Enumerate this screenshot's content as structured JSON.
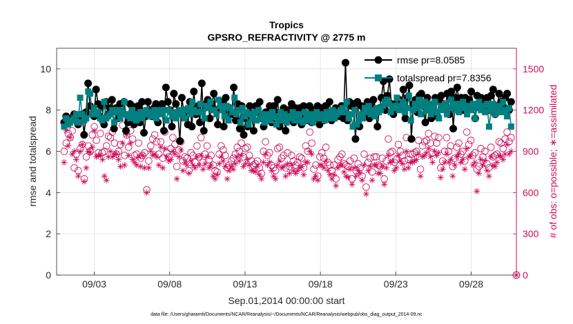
{
  "chart_data": {
    "type": "line",
    "title": "Tropics",
    "subtitle": "GPSRO_REFRACTIVITY @ 2775 m",
    "xlabel": "Sep.01,2014 00:00:00 start",
    "ylabel": "rmse and totalspread",
    "ylabel_right": "# of obs: o=possible; ∗=assimilated",
    "footnote": "data file: /Users/gharamti/Documents/NCAR/Reanalysis/~/Documents/NCAR/Reanalysis/webpub/obs_diag_output_2014-09.nc",
    "xlim": [
      0.5,
      31
    ],
    "x_ticks": [
      3,
      8,
      13,
      18,
      23,
      28
    ],
    "x_tick_labels": [
      "09/03",
      "09/08",
      "09/13",
      "09/18",
      "09/23",
      "09/28"
    ],
    "ylim": [
      0,
      11
    ],
    "y_ticks": [
      0,
      2,
      4,
      6,
      8,
      10
    ],
    "y_tick_labels": [
      "0",
      "2",
      "4",
      "6",
      "8",
      "10"
    ],
    "ylim_right": [
      0,
      1650
    ],
    "y_ticks_right": [
      0,
      300,
      600,
      900,
      1200,
      1500
    ],
    "y_tick_labels_right": [
      "0",
      "300",
      "600",
      "900",
      "1200",
      "1500"
    ],
    "grid": true,
    "legend_position": "top-right",
    "colors": {
      "rmse": "#000000",
      "totalspread": "#008080",
      "obs": "#cc0d5a",
      "grid": "#dcdcdc",
      "axes": "#262626"
    },
    "series": [
      {
        "name": "rmse",
        "legend_label": "rmse pr=8.0585",
        "axis": "left",
        "values": [
          7.4,
          7.7,
          7.5,
          7.6,
          7.6,
          7.8,
          7.5,
          7.3,
          7.5,
          7.8,
          6.8,
          7.9,
          9.3,
          8.2,
          7.8,
          7.7,
          9.0,
          8.3,
          7.7,
          8.2,
          7.3,
          8.4,
          7.8,
          8.1,
          8.5,
          7.1,
          8.1,
          7.6,
          8.3,
          7.9,
          8.4,
          7.0,
          7.4,
          8.3,
          8.2,
          7.3,
          7.9,
          8.2,
          7.4,
          8.4,
          6.9,
          7.7,
          8.4,
          8.0,
          7.7,
          8.1,
          8.3,
          7.4,
          8.0,
          8.3,
          7.0,
          9.1,
          8.4,
          8.0,
          7.2,
          8.8,
          8.3,
          7.8,
          6.5,
          8.6,
          7.9,
          8.0,
          7.3,
          8.4,
          7.2,
          8.9,
          7.8,
          8.2,
          7.4,
          9.3,
          7.0,
          8.3,
          8.5,
          7.6,
          8.3,
          8.8,
          8.0,
          7.3,
          8.1,
          8.4,
          7.2,
          8.6,
          7.9,
          8.1,
          7.8,
          9.1,
          7.5,
          8.3,
          7.1,
          8.2,
          6.8,
          7.6,
          7.2,
          8.2,
          7.8,
          7.0,
          8.2,
          7.9,
          8.4,
          7.6,
          7.2,
          7.9,
          7.7,
          8.2,
          7.4,
          8.2,
          7.9,
          8.5,
          7.2,
          7.5,
          8.1,
          7.0,
          8.0,
          7.6,
          8.3,
          7.4,
          8.1,
          7.8,
          8.1,
          7.3,
          8.2,
          7.8,
          7.5,
          8.2,
          7.4,
          8.0,
          7.6,
          8.2,
          7.3,
          8.1,
          7.5,
          8.2,
          7.9,
          8.4,
          7.5,
          7.6,
          8.1,
          8.0,
          7.7,
          8.2,
          7.6,
          10.3,
          7.5,
          8.4,
          8.2,
          8.3,
          6.6,
          8.4,
          7.2,
          8.2,
          7.7,
          8.0,
          8.4,
          7.6,
          8.3,
          8.5,
          8.0,
          7.2,
          8.1,
          8.6,
          9.4,
          8.0,
          8.7,
          9.5,
          8.3,
          7.8,
          8.1,
          8.4,
          8.5,
          8.2,
          9.0,
          7.6,
          8.6,
          9.2,
          6.6,
          8.3,
          8.5,
          7.9,
          8.7,
          8.8,
          8.2,
          7.4,
          8.6,
          8.0,
          7.6,
          8.3,
          8.6,
          7.7,
          8.5,
          8.7,
          8.3,
          8.1,
          8.8,
          7.8,
          8.9,
          7.1,
          8.6,
          9.1,
          8.3,
          8.6,
          8.0,
          8.6,
          8.1,
          8.5,
          8.9,
          8.2,
          7.6,
          8.7,
          8.3,
          8.6,
          8.1,
          8.4,
          8.6,
          8.0,
          8.7,
          9.0,
          7.8,
          8.2,
          8.8,
          8.4,
          8.2,
          8.6,
          8.8,
          8.0,
          8.4
        ]
      },
      {
        "name": "totalspread",
        "legend_label": "totalspread pr=7.8356",
        "axis": "left",
        "values": [
          7.2,
          7.6,
          7.3,
          7.4,
          7.5,
          7.6,
          7.8,
          7.4,
          8.6,
          7.8,
          7.5,
          7.6,
          8.9,
          8.8,
          7.8,
          8.1,
          7.8,
          7.9,
          7.6,
          7.5,
          8.4,
          7.6,
          7.7,
          7.8,
          8.0,
          7.4,
          7.9,
          8.0,
          7.6,
          7.9,
          8.4,
          7.8,
          7.7,
          7.6,
          8.0,
          7.7,
          7.5,
          7.8,
          7.9,
          7.6,
          7.9,
          8.0,
          7.8,
          7.7,
          7.9,
          8.0,
          7.6,
          7.9,
          8.0,
          7.8,
          8.0,
          7.5,
          8.0,
          7.9,
          7.7,
          7.9,
          7.6,
          7.9,
          8.0,
          7.8,
          7.6,
          8.0,
          8.1,
          7.8,
          8.4,
          8.0,
          7.9,
          7.9,
          8.3,
          7.9,
          7.6,
          8.2,
          8.1,
          8.4,
          8.0,
          8.0,
          7.8,
          8.5,
          8.2,
          8.0,
          7.7,
          8.2,
          7.5,
          8.1,
          7.9,
          8.6,
          7.8,
          8.0,
          7.4,
          8.1,
          7.7,
          7.9,
          7.3,
          7.8,
          7.6,
          7.9,
          7.5,
          8.0,
          7.6,
          7.8,
          7.4,
          7.6,
          7.8,
          7.5,
          7.9,
          7.7,
          7.3,
          7.6,
          7.9,
          7.5,
          7.8,
          7.4,
          7.6,
          7.7,
          7.9,
          7.5,
          7.6,
          7.8,
          7.5,
          7.4,
          7.9,
          7.6,
          7.5,
          7.8,
          7.4,
          7.6,
          7.9,
          7.7,
          7.6,
          7.8,
          7.5,
          7.9,
          7.6,
          7.8,
          8.0,
          7.6,
          7.8,
          7.9,
          8.0,
          8.1,
          7.9,
          8.4,
          7.6,
          7.8,
          7.2,
          8.0,
          7.3,
          7.5,
          7.8,
          7.6,
          8.1,
          7.9,
          8.2,
          7.8,
          8.0,
          7.7,
          8.1,
          7.9,
          8.0,
          8.2,
          8.4,
          8.5,
          8.3,
          7.9,
          8.1,
          8.2,
          8.6,
          8.0,
          8.2,
          8.4,
          7.9,
          8.1,
          8.7,
          7.5,
          8.0,
          8.3,
          8.1,
          8.5,
          7.8,
          8.2,
          8.4,
          8.0,
          8.3,
          7.8,
          8.1,
          8.4,
          7.9,
          7.6,
          8.2,
          8.0,
          8.3,
          7.8,
          8.1,
          8.5,
          8.2,
          8.0,
          8.3,
          7.9,
          8.2,
          8.4,
          8.1,
          7.8,
          8.2,
          8.0,
          8.3,
          7.6,
          8.1,
          8.4,
          8.0,
          8.2,
          7.9,
          8.3,
          7.2,
          8.0,
          8.3,
          7.8,
          8.1,
          8.2,
          7.9,
          8.4,
          8.0,
          7.7,
          8.1,
          7.2
        ]
      },
      {
        "name": "possible",
        "axis": "right",
        "marker": "circle",
        "values": [
          900,
          960,
          1030,
          1000,
          1050,
          780,
          880,
          760,
          920,
          950,
          700,
          860,
          940,
          900,
          1020,
          1080,
          980,
          890,
          1030,
          890,
          900,
          940,
          1010,
          1000,
          1040,
          960,
          880,
          900,
          950,
          1090,
          870,
          1020,
          930,
          1050,
          990,
          870,
          880,
          960,
          850,
          870,
          890,
          620,
          830,
          940,
          990,
          1020,
          970,
          880,
          970,
          850,
          1040,
          890,
          860,
          920,
          1000,
          950,
          790,
          910,
          970,
          830,
          860,
          850,
          760,
          890,
          870,
          820,
          940,
          860,
          1000,
          820,
          880,
          940,
          840,
          870,
          800,
          760,
          750,
          880,
          940,
          910,
          870,
          780,
          800,
          830,
          850,
          880,
          930,
          900,
          960,
          860,
          920,
          930,
          870,
          830,
          800,
          810,
          830,
          780,
          740,
          900,
          970,
          870,
          890,
          800,
          780,
          760,
          920,
          930,
          850,
          870,
          780,
          890,
          790,
          870,
          830,
          800,
          820,
          860,
          850,
          780,
          940,
          900,
          1040,
          960,
          770,
          800,
          720,
          860,
          890,
          850,
          930,
          820,
          800,
          760,
          800,
          700,
          840,
          860,
          880,
          810,
          800,
          790,
          830,
          700,
          850,
          760,
          810,
          780,
          720,
          880,
          640,
          820,
          850,
          750,
          860,
          860,
          800,
          790,
          850,
          700,
          830,
          990,
          890,
          900,
          820,
          840,
          950,
          900,
          870,
          830,
          1000,
          840,
          880,
          880,
          890,
          900,
          980,
          770,
          940,
          970,
          980,
          1030,
          960,
          890,
          1010,
          960,
          1000,
          780,
          830,
          900,
          1000,
          900,
          940,
          790,
          850,
          930,
          960,
          880,
          900,
          830,
          1040,
          950,
          980,
          870,
          890,
          770,
          790,
          920,
          860,
          900,
          810,
          780,
          930,
          860,
          870,
          880,
          970,
          960,
          920,
          990,
          1040,
          970,
          1000
        ]
      },
      {
        "name": "assimilated",
        "axis": "right",
        "marker": "star",
        "values": [
          820,
          1050,
          940,
          1000,
          880,
          900,
          840,
          720,
          900,
          950,
          680,
          780,
          900,
          890,
          930,
          1050,
          860,
          870,
          870,
          840,
          720,
          690,
          860,
          900,
          860,
          880,
          880,
          840,
          790,
          960,
          800,
          1020,
          870,
          960,
          840,
          820,
          800,
          860,
          790,
          870,
          780,
          600,
          780,
          900,
          870,
          880,
          860,
          800,
          930,
          780,
          920,
          860,
          830,
          840,
          900,
          880,
          700,
          860,
          910,
          760,
          820,
          800,
          740,
          830,
          800,
          780,
          860,
          800,
          870,
          770,
          810,
          860,
          780,
          800,
          720,
          700,
          730,
          810,
          860,
          830,
          790,
          700,
          760,
          790,
          770,
          810,
          860,
          830,
          870,
          790,
          810,
          840,
          800,
          760,
          760,
          750,
          790,
          730,
          700,
          820,
          880,
          800,
          820,
          760,
          720,
          700,
          800,
          830,
          780,
          790,
          720,
          810,
          740,
          800,
          760,
          740,
          760,
          780,
          790,
          730,
          820,
          820,
          900,
          880,
          700,
          720,
          690,
          800,
          800,
          780,
          830,
          760,
          730,
          700,
          730,
          650,
          780,
          800,
          800,
          750,
          720,
          710,
          770,
          660,
          780,
          720,
          760,
          740,
          690,
          800,
          590,
          760,
          790,
          690,
          800,
          800,
          740,
          740,
          790,
          660,
          780,
          870,
          820,
          830,
          760,
          780,
          870,
          830,
          810,
          770,
          900,
          780,
          820,
          820,
          830,
          840,
          880,
          720,
          860,
          870,
          890,
          920,
          860,
          820,
          900,
          870,
          890,
          710,
          770,
          820,
          880,
          820,
          840,
          720,
          800,
          860,
          880,
          820,
          840,
          770,
          920,
          860,
          870,
          800,
          820,
          610,
          740,
          840,
          800,
          830,
          760,
          720,
          860,
          800,
          790,
          820,
          870,
          860,
          840,
          880,
          950,
          880,
          900
        ]
      }
    ]
  }
}
